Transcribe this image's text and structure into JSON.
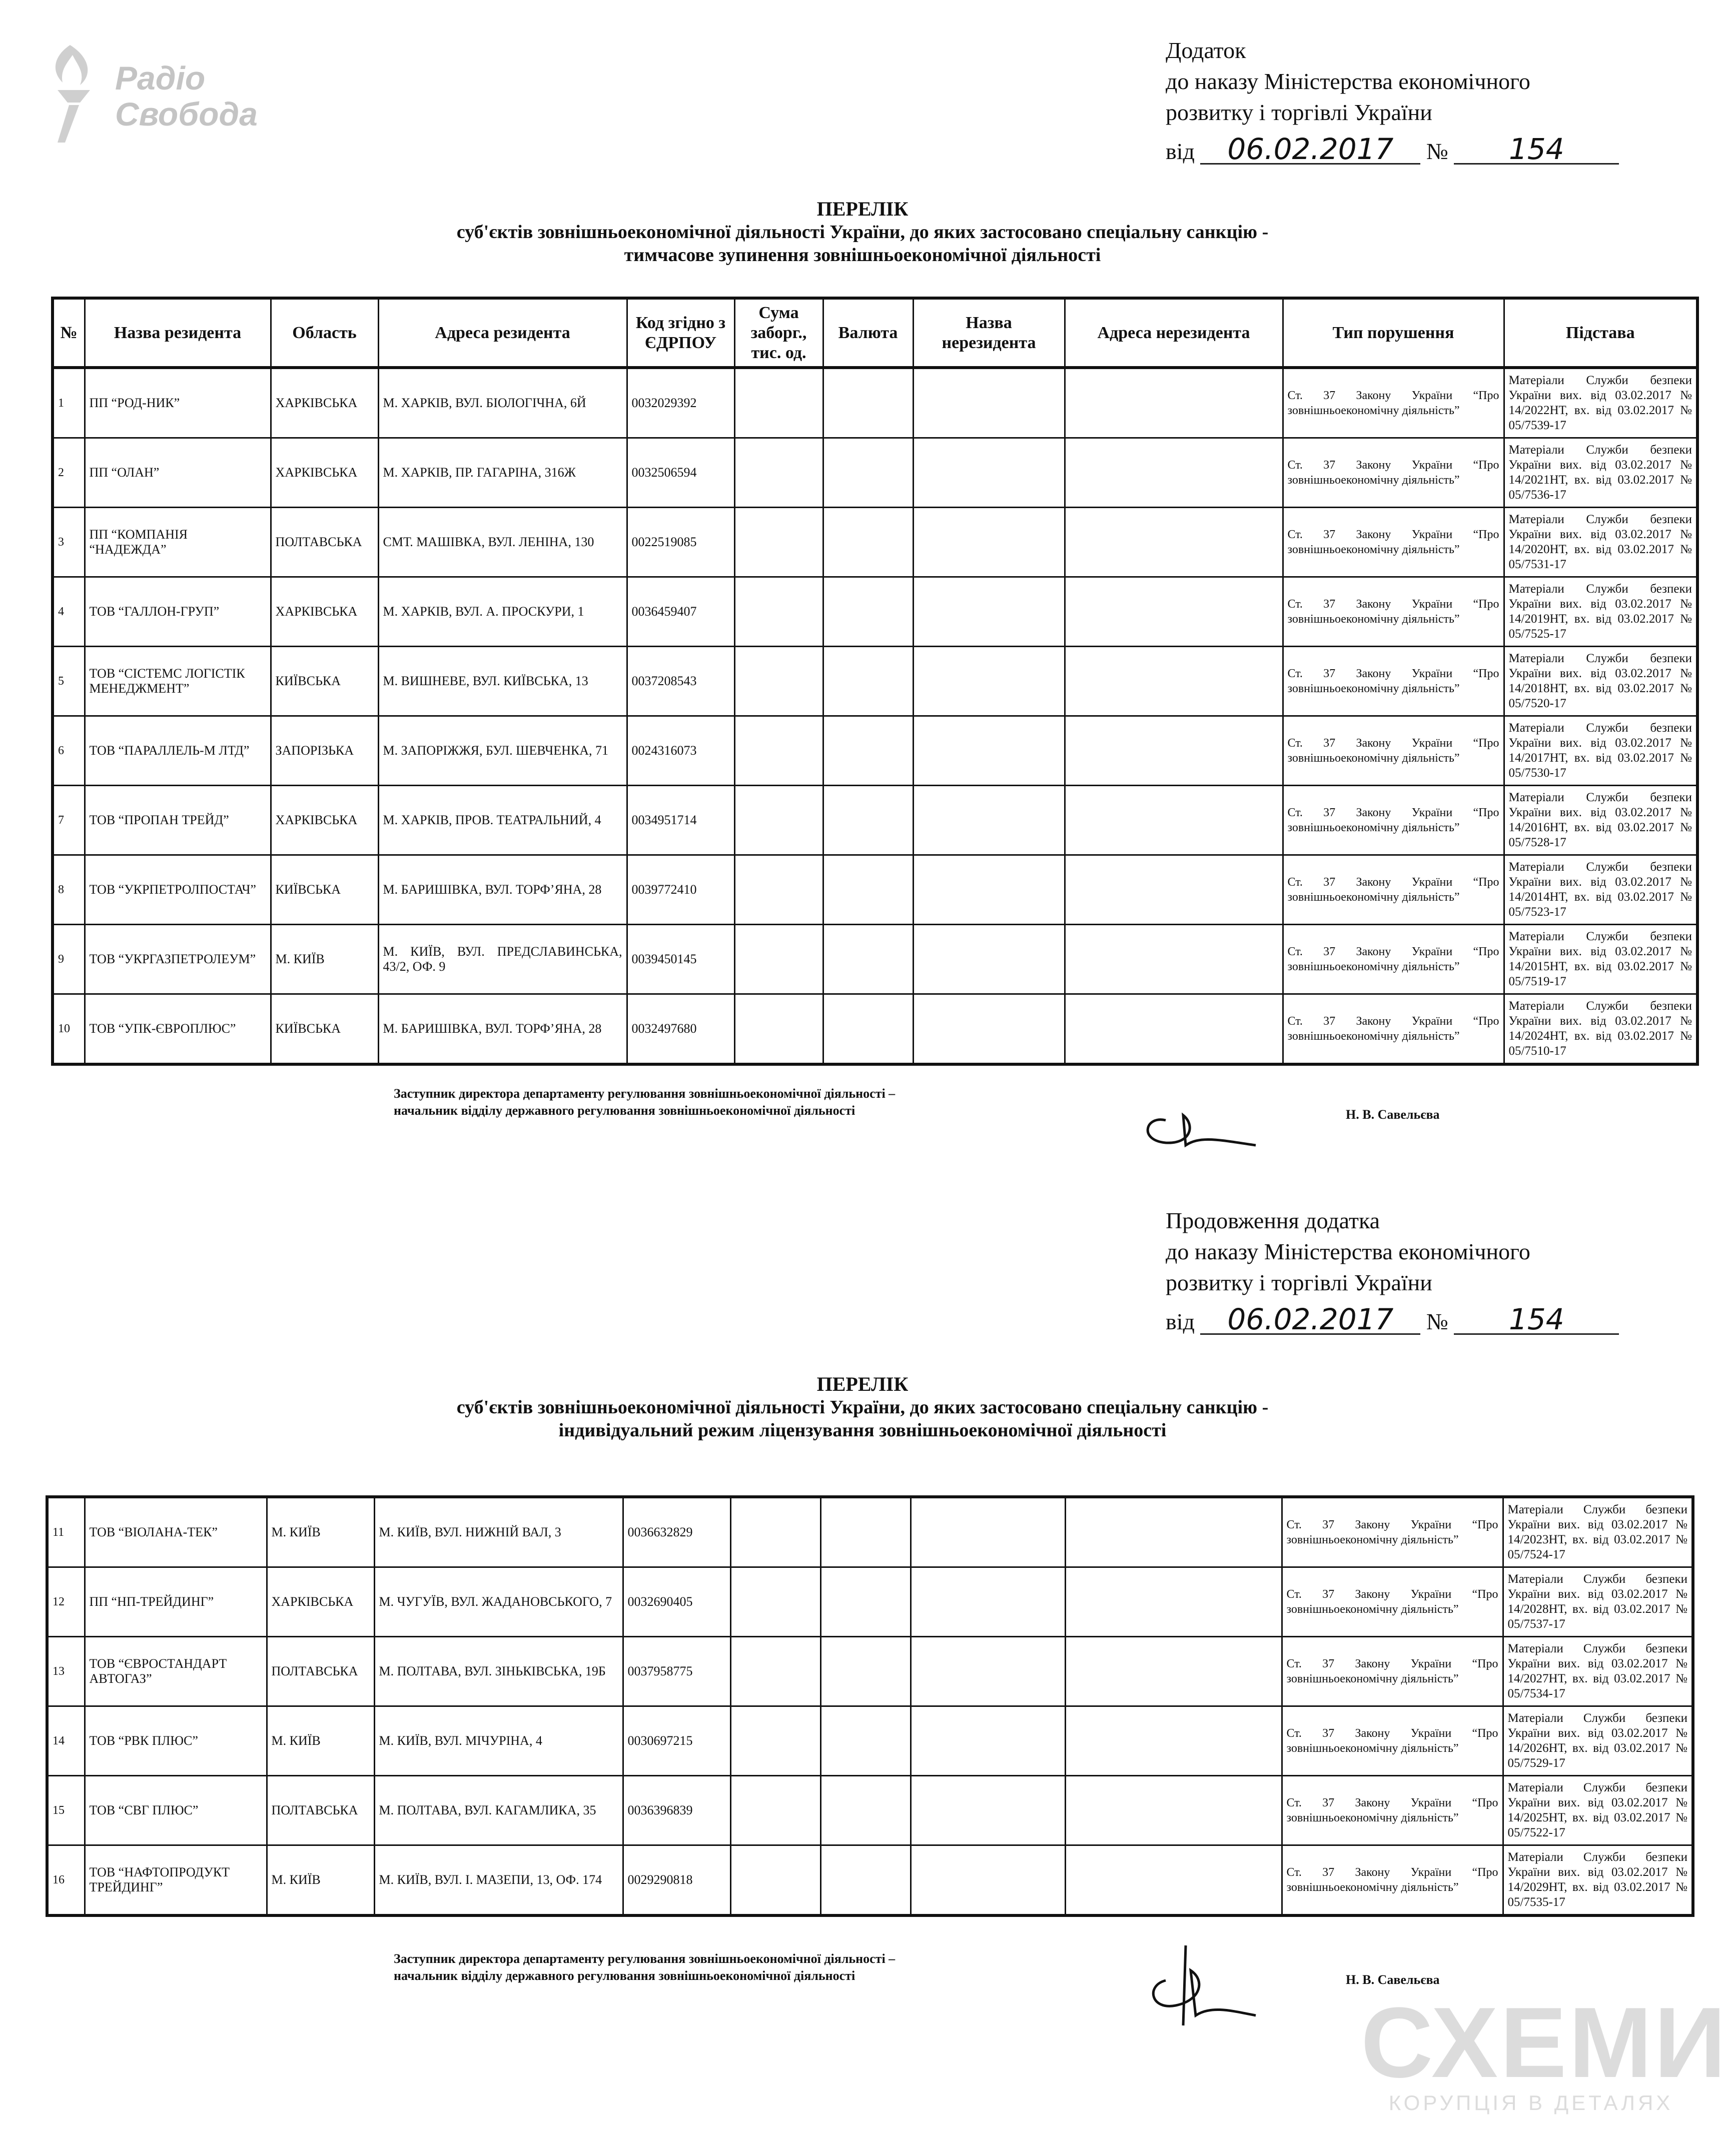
{
  "logo": {
    "line1": "Радіо",
    "line2": "Свобода",
    "icon": "torch-icon",
    "color": "#c4c4c4"
  },
  "page1": {
    "header": {
      "line1": "Додаток",
      "line2": "до наказу Міністерства економічного",
      "line3": "розвитку і торгівлі України",
      "date_prefix": "від",
      "date": "06.02.2017",
      "number_prefix": "№",
      "number": "154"
    },
    "title": "ПЕРЕЛІК",
    "subtitle1": "суб'єктів зовнішньоекономічної діяльності України,  до яких застосовано спеціальну санкцію -",
    "subtitle2": "тимчасове зупинення зовнішньоекономічної діяльності",
    "signature": {
      "line1": "Заступник директора департаменту регулювання зовнішньоекономічної діяльності –",
      "line2": "начальник відділу державного регулювання зовнішньоекономічної діяльності",
      "name": "Н. В. Савельєва"
    }
  },
  "page2": {
    "header": {
      "line1": "Продовження додатка",
      "line2": "до наказу Міністерства економічного",
      "line3": "розвитку і торгівлі України",
      "date_prefix": "від",
      "date": "06.02.2017",
      "number_prefix": "№",
      "number": "154"
    },
    "title": "ПЕРЕЛІК",
    "subtitle1": "суб'єктів зовнішньоекономічної діяльності України,  до яких застосовано спеціальну санкцію -",
    "subtitle2": "індивідуальний режим ліцензування зовнішньоекономічної діяльності",
    "signature": {
      "line1": "Заступник директора департаменту регулювання зовнішньоекономічної діяльності –",
      "line2": "начальник відділу державного регулювання зовнішньоекономічної діяльності",
      "name": "Н. В. Савельєва"
    }
  },
  "columns": [
    "№",
    "Назва резидента",
    "Область",
    "Адреса резидента",
    "Код згідно з ЄДРПОУ",
    "Сума заборг., тис. од.",
    "Валюта",
    "Назва нерезидента",
    "Адреса нерезидента",
    "Тип порушення",
    "Підстава"
  ],
  "table1": [
    {
      "n": "1",
      "name": "ПП “РОД-НИК”",
      "region": "ХАРКІВСЬКА",
      "address": "М. ХАРКІВ, ВУЛ. БІОЛОГІЧНА, 6Й",
      "code": "0032029392",
      "debt": "",
      "currency": "",
      "nr_name": "",
      "nr_address": "",
      "violation": "Ст. 37 Закону України “Про зовнішньоекономічну діяльність”",
      "basis": "Матеріали Служби безпеки України вих. від 03.02.2017 № 14/2022НТ, вх. від 03.02.2017 № 05/7539-17"
    },
    {
      "n": "2",
      "name": "ПП “ОЛАН”",
      "region": "ХАРКІВСЬКА",
      "address": "М. ХАРКІВ, ПР. ГАГАРІНА, 316Ж",
      "code": "0032506594",
      "debt": "",
      "currency": "",
      "nr_name": "",
      "nr_address": "",
      "violation": "Ст. 37 Закону України “Про зовнішньоекономічну діяльність”",
      "basis": "Матеріали Служби безпеки України вих. від 03.02.2017 № 14/2021НТ, вх. від 03.02.2017 № 05/7536-17"
    },
    {
      "n": "3",
      "name": "ПП “КОМПАНІЯ “НАДЕЖДА”",
      "region": "ПОЛТАВСЬКА",
      "address": "СМТ. МАШІВКА, ВУЛ. ЛЕНІНА, 130",
      "code": "0022519085",
      "debt": "",
      "currency": "",
      "nr_name": "",
      "nr_address": "",
      "violation": "Ст. 37 Закону України “Про зовнішньоекономічну діяльність”",
      "basis": "Матеріали Служби безпеки України вих. від 03.02.2017 № 14/2020НТ, вх. від 03.02.2017 № 05/7531-17"
    },
    {
      "n": "4",
      "name": "ТОВ “ГАЛЛОН-ГРУП”",
      "region": "ХАРКІВСЬКА",
      "address": "М. ХАРКІВ, ВУЛ. А. ПРОСКУРИ, 1",
      "code": "0036459407",
      "debt": "",
      "currency": "",
      "nr_name": "",
      "nr_address": "",
      "violation": "Ст. 37 Закону України “Про зовнішньоекономічну діяльність”",
      "basis": "Матеріали Служби безпеки України вих. від 03.02.2017 № 14/2019НТ, вх. від 03.02.2017 № 05/7525-17"
    },
    {
      "n": "5",
      "name": "ТОВ “СІСТЕМС ЛОГІСТІК МЕНЕДЖМЕНТ”",
      "region": "КИЇВСЬКА",
      "address": "М. ВИШНЕВЕ, ВУЛ. КИЇВСЬКА, 13",
      "code": "0037208543",
      "debt": "",
      "currency": "",
      "nr_name": "",
      "nr_address": "",
      "violation": "Ст. 37 Закону України “Про зовнішньоекономічну діяльність”",
      "basis": "Матеріали Служби безпеки України вих. від 03.02.2017 № 14/2018НТ, вх. від 03.02.2017 № 05/7520-17"
    },
    {
      "n": "6",
      "name": "ТОВ “ПАРАЛЛЕЛЬ-М ЛТД”",
      "region": "ЗАПОРІЗЬКА",
      "address": "М. ЗАПОРІЖЖЯ, БУЛ. ШЕВЧЕНКА, 71",
      "code": "0024316073",
      "debt": "",
      "currency": "",
      "nr_name": "",
      "nr_address": "",
      "violation": "Ст. 37 Закону України “Про зовнішньоекономічну діяльність”",
      "basis": "Матеріали Служби безпеки України вих. від 03.02.2017 № 14/2017НТ, вх. від 03.02.2017 № 05/7530-17"
    },
    {
      "n": "7",
      "name": "ТОВ “ПРОПАН ТРЕЙД”",
      "region": "ХАРКІВСЬКА",
      "address": "М. ХАРКІВ, ПРОВ. ТЕАТРАЛЬНИЙ, 4",
      "code": "0034951714",
      "debt": "",
      "currency": "",
      "nr_name": "",
      "nr_address": "",
      "violation": "Ст. 37 Закону України “Про зовнішньоекономічну діяльність”",
      "basis": "Матеріали Служби безпеки України вих. від 03.02.2017 № 14/2016НТ, вх. від 03.02.2017 № 05/7528-17"
    },
    {
      "n": "8",
      "name": "ТОВ “УКРПЕТРОЛПОСТАЧ”",
      "region": "КИЇВСЬКА",
      "address": "М. БАРИШІВКА, ВУЛ. ТОРФ’ЯНА, 28",
      "code": "0039772410",
      "debt": "",
      "currency": "",
      "nr_name": "",
      "nr_address": "",
      "violation": "Ст. 37 Закону України “Про зовнішньоекономічну діяльність”",
      "basis": "Матеріали Служби безпеки України вих. від 03.02.2017 № 14/2014НТ, вх. від 03.02.2017 № 05/7523-17"
    },
    {
      "n": "9",
      "name": "ТОВ “УКРГАЗПЕТРОЛЕУМ”",
      "region": "М. КИЇВ",
      "address": "М. КИЇВ, ВУЛ. ПРЕДСЛАВИНСЬКА, 43/2, ОФ. 9",
      "code": "0039450145",
      "debt": "",
      "currency": "",
      "nr_name": "",
      "nr_address": "",
      "violation": "Ст. 37 Закону України “Про зовнішньоекономічну діяльність”",
      "basis": "Матеріали Служби безпеки України вих. від 03.02.2017 № 14/2015НТ, вх. від 03.02.2017 № 05/7519-17"
    },
    {
      "n": "10",
      "name": "ТОВ “УПК-ЄВРОПЛЮС”",
      "region": "КИЇВСЬКА",
      "address": "М. БАРИШІВКА, ВУЛ. ТОРФ’ЯНА, 28",
      "code": "0032497680",
      "debt": "",
      "currency": "",
      "nr_name": "",
      "nr_address": "",
      "violation": "Ст. 37 Закону України “Про зовнішньоекономічну діяльність”",
      "basis": "Матеріали Служби безпеки України вих. від 03.02.2017 № 14/2024НТ, вх. від 03.02.2017 № 05/7510-17"
    }
  ],
  "table2": [
    {
      "n": "11",
      "name": "ТОВ “ВІОЛАНА-ТЕК”",
      "region": "М. КИЇВ",
      "address": "М. КИЇВ, ВУЛ. НИЖНІЙ ВАЛ, 3",
      "code": "0036632829",
      "debt": "",
      "currency": "",
      "nr_name": "",
      "nr_address": "",
      "violation": "Ст. 37 Закону України “Про зовнішньоекономічну діяльність”",
      "basis": "Матеріали Служби безпеки України вих. від 03.02.2017 № 14/2023НТ, вх. від 03.02.2017 № 05/7524-17"
    },
    {
      "n": "12",
      "name": "ПП “НП-ТРЕЙДИНГ”",
      "region": "ХАРКІВСЬКА",
      "address": "М. ЧУГУЇВ, ВУЛ. ЖАДАНОВСЬКОГО, 7",
      "code": "0032690405",
      "debt": "",
      "currency": "",
      "nr_name": "",
      "nr_address": "",
      "violation": "Ст. 37 Закону України “Про зовнішньоекономічну діяльність”",
      "basis": "Матеріали Служби безпеки України вих. від 03.02.2017 № 14/2028НТ, вх. від 03.02.2017 № 05/7537-17"
    },
    {
      "n": "13",
      "name": "ТОВ “ЄВРОСТАНДАРТ АВТОГАЗ”",
      "region": "ПОЛТАВСЬКА",
      "address": "М. ПОЛТАВА, ВУЛ. ЗІНЬКІВСЬКА, 19Б",
      "code": "0037958775",
      "debt": "",
      "currency": "",
      "nr_name": "",
      "nr_address": "",
      "violation": "Ст. 37 Закону України “Про зовнішньоекономічну діяльність”",
      "basis": "Матеріали Служби безпеки України вих. від 03.02.2017 № 14/2027НТ, вх. від 03.02.2017 № 05/7534-17"
    },
    {
      "n": "14",
      "name": "ТОВ “РВК ПЛЮС”",
      "region": "М. КИЇВ",
      "address": "М. КИЇВ, ВУЛ. МІЧУРІНА, 4",
      "code": "0030697215",
      "debt": "",
      "currency": "",
      "nr_name": "",
      "nr_address": "",
      "violation": "Ст. 37 Закону України “Про зовнішньоекономічну діяльність”",
      "basis": "Матеріали Служби безпеки України вих. від 03.02.2017 № 14/2026НТ, вх. від 03.02.2017 № 05/7529-17"
    },
    {
      "n": "15",
      "name": "ТОВ “СВГ ПЛЮС”",
      "region": "ПОЛТАВСЬКА",
      "address": "М. ПОЛТАВА, ВУЛ. КАГАМЛИКА, 35",
      "code": "0036396839",
      "debt": "",
      "currency": "",
      "nr_name": "",
      "nr_address": "",
      "violation": "Ст. 37 Закону України “Про зовнішньоекономічну діяльність”",
      "basis": "Матеріали Служби безпеки України вих. від 03.02.2017 № 14/2025НТ, вх. від 03.02.2017 № 05/7522-17"
    },
    {
      "n": "16",
      "name": "ТОВ “НАФТОПРОДУКТ ТРЕЙДИНГ”",
      "region": "М. КИЇВ",
      "address": "М. КИЇВ, ВУЛ. І. МАЗЕПИ, 13, ОФ. 174",
      "code": "0029290818",
      "debt": "",
      "currency": "",
      "nr_name": "",
      "nr_address": "",
      "violation": "Ст. 37 Закону України “Про зовнішньоекономічну діяльність”",
      "basis": "Матеріали Служби безпеки України вих. від 03.02.2017 № 14/2029НТ, вх. від 03.02.2017 № 05/7535-17"
    }
  ],
  "watermark": {
    "title": "СХЕМИ",
    "tagline": "КОРУПЦІЯ В ДЕТАЛЯХ",
    "color": "#dcdcdc"
  }
}
